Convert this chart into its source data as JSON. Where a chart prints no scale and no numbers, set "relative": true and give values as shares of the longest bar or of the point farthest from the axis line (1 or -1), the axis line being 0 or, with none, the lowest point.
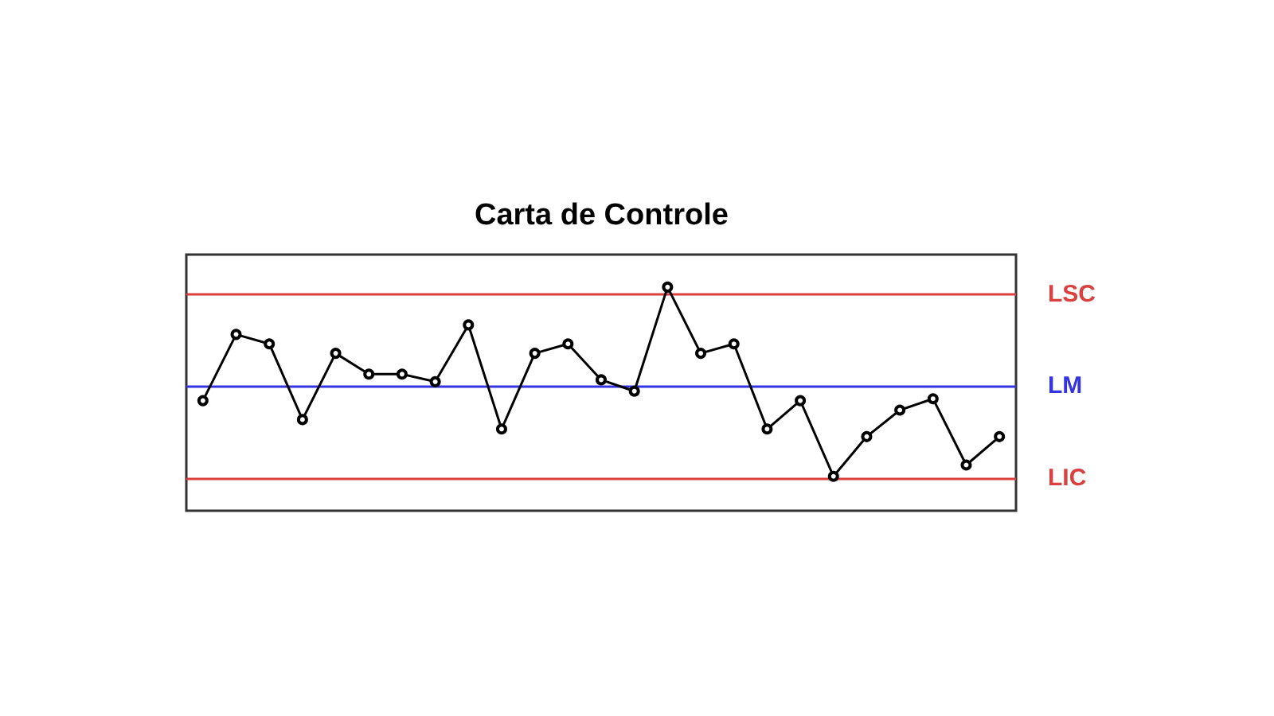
{
  "chart_data": {
    "type": "line",
    "title": "Carta de Controle",
    "relative": true,
    "marker": "circle",
    "line_style": "solid",
    "grid": false,
    "categories": [
      null,
      null,
      null,
      null,
      null,
      null,
      null,
      null,
      null,
      null,
      null,
      null,
      null,
      null,
      null,
      null,
      null,
      null,
      null,
      null,
      null,
      null,
      null,
      null,
      null
    ],
    "series": [
      {
        "color": "#000000",
        "values": [
          0.4,
          0.75,
          0.7,
          0.3,
          0.65,
          0.54,
          0.54,
          0.5,
          0.8,
          0.25,
          0.65,
          0.7,
          0.51,
          0.45,
          1,
          0.65,
          0.7,
          0.25,
          0.4,
          0,
          0.21,
          0.35,
          0.41,
          0.06,
          0.21
        ]
      }
    ],
    "ref_lines": [
      {
        "axis": "y",
        "value": 0.96,
        "label": "LSC",
        "color": "#d9403f"
      },
      {
        "axis": "y",
        "value": 0.48,
        "label": "LM",
        "color": "#3434e0"
      },
      {
        "axis": "y",
        "value": -0.01,
        "label": "LIC",
        "color": "#d9403f"
      }
    ]
  }
}
